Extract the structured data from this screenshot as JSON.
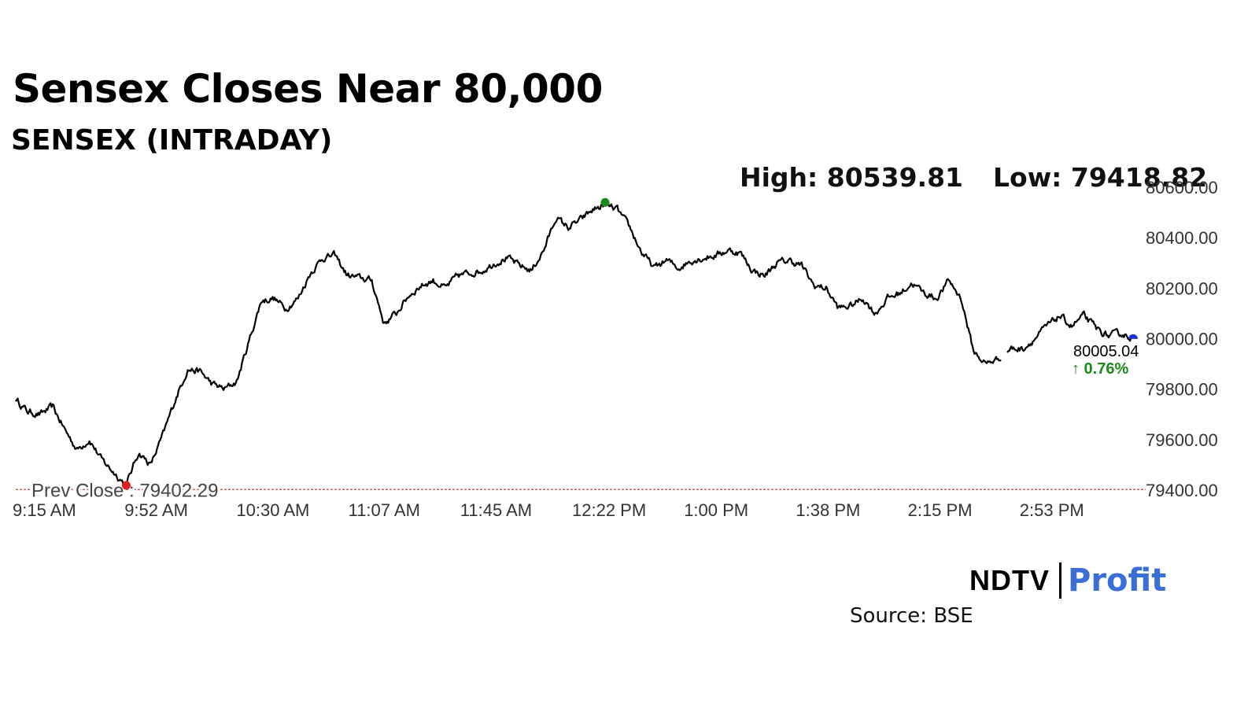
{
  "headline": "Sensex Closes Near 80,000",
  "subtitle": "SENSEX (INTRADAY)",
  "high_label": "High: 80539.81",
  "low_label": "Low: 79418.82",
  "prev_close_label": "Prev Close : 79402.29",
  "last_value_label": "80005.04",
  "change_label": "↑ 0.76%",
  "source": "Source: BSE",
  "logo": {
    "ndtv": "NDTV",
    "profit": "Profit"
  },
  "colors": {
    "line": "#000000",
    "high_marker": "#1a8a1a",
    "low_marker": "#e02020",
    "last_marker": "#1f2fd0",
    "prev_close_line": "#d04040",
    "change_up": "#1a8a1a",
    "logo_profit": "#3b6fd8"
  },
  "chart_data": {
    "type": "line",
    "title": "Sensex Closes Near 80,000",
    "subtitle": "SENSEX (INTRADAY)",
    "xlabel": "",
    "ylabel": "",
    "ylim": [
      79400,
      80600
    ],
    "y_ticks": [
      79400,
      79600,
      79800,
      80000,
      80200,
      80400,
      80600
    ],
    "y_tick_labels": [
      "79400.00",
      "79600.00",
      "79800.00",
      "80000.00",
      "80200.00",
      "80400.00",
      "80600.00"
    ],
    "x_tick_labels": [
      "9:15 AM",
      "9:52 AM",
      "10:30 AM",
      "11:07 AM",
      "11:45 AM",
      "12:22 PM",
      "1:00 PM",
      "1:38 PM",
      "2:15 PM",
      "2:53 PM"
    ],
    "prev_close": 79402.29,
    "high": 80539.81,
    "low": 79418.82,
    "last": 80005.04,
    "change_pct": 0.76,
    "grid": false,
    "series": [
      {
        "x": [
          "9:15 AM",
          "9:19 AM",
          "9:23 AM",
          "9:27 AM",
          "9:31 AM",
          "9:35 AM",
          "9:39 AM",
          "9:43 AM",
          "9:47 AM",
          "9:50 AM",
          "9:52 AM",
          "9:55 AM",
          "9:59 AM",
          "10:03 AM",
          "10:07 AM",
          "10:11 AM",
          "10:15 AM",
          "10:19 AM",
          "10:23 AM",
          "10:27 AM",
          "10:30 AM",
          "10:34 AM",
          "10:38 AM",
          "10:42 AM",
          "10:46 AM",
          "10:50 AM",
          "10:55 AM",
          "10:59 AM",
          "11:03 AM",
          "11:07 AM",
          "11:11 AM",
          "11:15 AM",
          "11:19 AM",
          "11:24 AM",
          "11:28 AM",
          "11:33 AM",
          "11:37 AM",
          "11:41 AM",
          "11:45 AM",
          "11:50 AM",
          "11:55 AM",
          "12:00 PM",
          "12:05 PM",
          "12:10 PM",
          "12:14 PM",
          "12:18 PM",
          "12:22 PM",
          "12:26 PM",
          "12:30 PM",
          "12:34 PM",
          "12:38 PM",
          "12:42 PM",
          "12:46 PM",
          "12:50 PM",
          "12:55 PM",
          "1:00 PM",
          "1:05 PM",
          "1:10 PM",
          "1:15 PM",
          "1:20 PM",
          "1:25 PM",
          "1:30 PM",
          "1:35 PM",
          "1:38 PM",
          "1:42 PM",
          "1:45 PM",
          "1:50 PM",
          "1:55 PM",
          "2:00 PM",
          "2:05 PM",
          "2:10 PM",
          "2:15 PM",
          "2:19 PM",
          "2:24 PM",
          "2:29 PM",
          "2:34 PM",
          "2:38 PM",
          "2:41 PM",
          "2:44 PM",
          "2:47 PM",
          "2:50 PM",
          "2:53 PM",
          "2:56 PM",
          "3:00 PM",
          "3:05 PM",
          "3:10 PM",
          "3:14 PM",
          "3:18 PM",
          "3:22 PM",
          "3:25 PM",
          "3:28 PM",
          "3:30 PM"
        ],
        "values": [
          79760,
          79710,
          79700,
          79730,
          79640,
          79560,
          79600,
          79520,
          79470,
          79420,
          79550,
          79500,
          79620,
          79760,
          79880,
          79870,
          79820,
          79800,
          79830,
          79990,
          80150,
          80160,
          80120,
          80160,
          80260,
          80320,
          80330,
          80250,
          80240,
          80230,
          80060,
          80100,
          80170,
          80210,
          80230,
          80200,
          80250,
          80260,
          80270,
          80300,
          80320,
          80290,
          80270,
          80350,
          80480,
          80440,
          80470,
          80510,
          80530,
          80510,
          80440,
          80340,
          80280,
          80310,
          80280,
          80310,
          80320,
          80330,
          80350,
          80340,
          80270,
          80250,
          80300,
          80310,
          80290,
          80210,
          80200,
          80120,
          80130,
          80160,
          80100,
          80160,
          80180,
          80220,
          80180,
          80160,
          80230,
          80160,
          79950,
          79900,
          79920,
          79960,
          79960,
          80000,
          80050,
          80090,
          80050,
          80090,
          80040,
          80010,
          80020,
          80005
        ]
      }
    ]
  }
}
